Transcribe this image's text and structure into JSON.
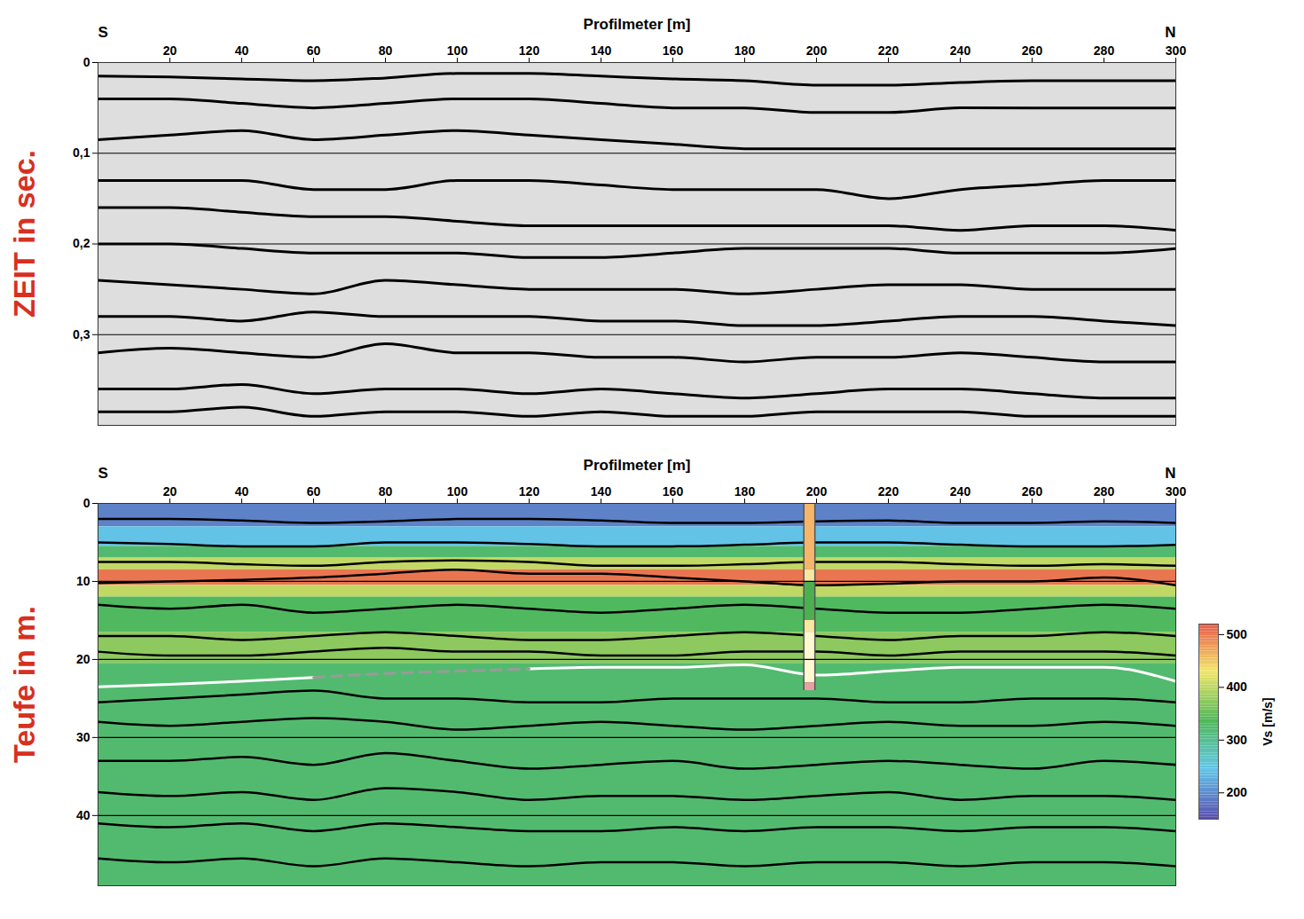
{
  "chart_data": [
    {
      "type": "line",
      "xlabel": "Profilmeter [m]",
      "ylabel": "ZEIT in sec.",
      "xlim": [
        0,
        300
      ],
      "ylim": [
        0,
        0.4
      ],
      "xticks": [
        20,
        40,
        60,
        80,
        100,
        120,
        140,
        160,
        180,
        200,
        220,
        240,
        260,
        280,
        300
      ],
      "yticks": [
        0,
        {
          "value": 0.1,
          "label": "0,1"
        },
        {
          "value": 0.2,
          "label": "0,2"
        },
        {
          "value": 0.3,
          "label": "0,3"
        }
      ],
      "grid": true,
      "annotations": [
        {
          "text": "S",
          "x": 0
        },
        {
          "text": "N",
          "x": 300
        }
      ],
      "x": [
        0,
        20,
        40,
        60,
        80,
        100,
        120,
        140,
        160,
        180,
        200,
        220,
        240,
        260,
        280,
        300
      ],
      "series": [
        {
          "color": "#000000",
          "values": [
            0.015,
            0.016,
            0.018,
            0.02,
            0.017,
            0.012,
            0.012,
            0.015,
            0.018,
            0.02,
            0.025,
            0.025,
            0.022,
            0.02,
            0.02,
            0.02
          ]
        },
        {
          "color": "#000000",
          "values": [
            0.04,
            0.04,
            0.045,
            0.05,
            0.045,
            0.04,
            0.04,
            0.045,
            0.05,
            0.05,
            0.055,
            0.055,
            0.05,
            0.05,
            0.05,
            0.05
          ]
        },
        {
          "color": "#000000",
          "values": [
            0.085,
            0.08,
            0.075,
            0.085,
            0.08,
            0.075,
            0.08,
            0.085,
            0.09,
            0.095,
            0.095,
            0.095,
            0.095,
            0.095,
            0.095,
            0.095
          ]
        },
        {
          "color": "#000000",
          "values": [
            0.13,
            0.13,
            0.13,
            0.14,
            0.14,
            0.13,
            0.13,
            0.135,
            0.14,
            0.14,
            0.14,
            0.15,
            0.14,
            0.135,
            0.13,
            0.13
          ]
        },
        {
          "color": "#000000",
          "values": [
            0.16,
            0.16,
            0.165,
            0.17,
            0.17,
            0.175,
            0.18,
            0.18,
            0.18,
            0.18,
            0.18,
            0.18,
            0.185,
            0.18,
            0.18,
            0.185
          ]
        },
        {
          "color": "#000000",
          "values": [
            0.2,
            0.2,
            0.205,
            0.21,
            0.21,
            0.21,
            0.215,
            0.215,
            0.21,
            0.205,
            0.205,
            0.205,
            0.21,
            0.21,
            0.21,
            0.205
          ]
        },
        {
          "color": "#000000",
          "values": [
            0.24,
            0.245,
            0.25,
            0.255,
            0.24,
            0.245,
            0.25,
            0.25,
            0.25,
            0.255,
            0.25,
            0.245,
            0.245,
            0.25,
            0.25,
            0.25
          ]
        },
        {
          "color": "#000000",
          "values": [
            0.28,
            0.28,
            0.285,
            0.275,
            0.28,
            0.28,
            0.28,
            0.285,
            0.285,
            0.29,
            0.29,
            0.285,
            0.28,
            0.28,
            0.285,
            0.29
          ]
        },
        {
          "color": "#000000",
          "values": [
            0.32,
            0.315,
            0.32,
            0.325,
            0.31,
            0.32,
            0.32,
            0.325,
            0.325,
            0.33,
            0.325,
            0.325,
            0.32,
            0.325,
            0.33,
            0.33
          ]
        },
        {
          "color": "#000000",
          "values": [
            0.36,
            0.36,
            0.355,
            0.365,
            0.36,
            0.36,
            0.365,
            0.36,
            0.365,
            0.37,
            0.365,
            0.36,
            0.36,
            0.365,
            0.37,
            0.37
          ]
        },
        {
          "color": "#000000",
          "values": [
            0.385,
            0.385,
            0.38,
            0.39,
            0.385,
            0.385,
            0.39,
            0.385,
            0.39,
            0.39,
            0.385,
            0.385,
            0.385,
            0.39,
            0.39,
            0.39
          ]
        }
      ]
    },
    {
      "type": "line",
      "xlabel": "Profilmeter [m]",
      "ylabel": "Teufe in m.",
      "xlim": [
        0,
        300
      ],
      "ylim": [
        0,
        49
      ],
      "xticks": [
        20,
        40,
        60,
        80,
        100,
        120,
        140,
        160,
        180,
        200,
        220,
        240,
        260,
        280,
        300
      ],
      "yticks": [
        0,
        10,
        20,
        30,
        40
      ],
      "grid": true,
      "annotations": [
        {
          "text": "S",
          "x": 0
        },
        {
          "text": "N",
          "x": 300
        }
      ],
      "x": [
        0,
        20,
        40,
        60,
        80,
        100,
        120,
        140,
        160,
        180,
        200,
        220,
        240,
        260,
        280,
        300
      ],
      "vs_layers": [
        {
          "top": 0,
          "bottom": 3,
          "vs": 190
        },
        {
          "top": 3,
          "bottom": 5.5,
          "vs": 240
        },
        {
          "top": 5.5,
          "bottom": 7,
          "vs": 320
        },
        {
          "top": 7,
          "bottom": 8.5,
          "vs": 400
        },
        {
          "top": 8.5,
          "bottom": 10.5,
          "vs": 500
        },
        {
          "top": 10.5,
          "bottom": 12,
          "vs": 400
        },
        {
          "top": 12,
          "bottom": 16.5,
          "vs": 330
        },
        {
          "top": 16.5,
          "bottom": 20.5,
          "vs": 370
        },
        {
          "top": 20.5,
          "bottom": 49,
          "vs": 320
        }
      ],
      "colorbar": {
        "label": "Vs [m/s]",
        "range": [
          150,
          520
        ],
        "ticks": [
          200,
          300,
          400,
          500
        ],
        "colors": [
          "#5a4fb0",
          "#62c6e8",
          "#4fb858",
          "#f2e66a",
          "#e8574a"
        ]
      },
      "borehole": {
        "x": 198,
        "segments": [
          {
            "top": 0,
            "bottom": 8.5,
            "color": "#f5b66b"
          },
          {
            "top": 8.5,
            "bottom": 10,
            "color": "#f7e7a0"
          },
          {
            "top": 10,
            "bottom": 15,
            "color": "#4caf50"
          },
          {
            "top": 15,
            "bottom": 16.5,
            "color": "#f7e7a0"
          },
          {
            "top": 16.5,
            "bottom": 23,
            "color": "#fff8d0"
          },
          {
            "top": 23,
            "bottom": 24,
            "color": "#e8a0a0"
          }
        ]
      },
      "series": [
        {
          "color": "#000000",
          "values": [
            2,
            2,
            2.2,
            2.5,
            2.3,
            2,
            2,
            2.2,
            2.5,
            2.5,
            2.3,
            2.2,
            2.5,
            2.5,
            2.3,
            2.5
          ]
        },
        {
          "color": "#000000",
          "values": [
            5,
            5.2,
            5.5,
            5.5,
            5,
            5,
            5.2,
            5.5,
            5.5,
            5.3,
            5,
            5,
            5.3,
            5.5,
            5.5,
            5.3
          ]
        },
        {
          "color": "#000000",
          "values": [
            7.5,
            7.5,
            7.8,
            8,
            7.5,
            7.3,
            7.5,
            8,
            8,
            7.8,
            7.5,
            7.5,
            7.8,
            8,
            7.8,
            8
          ]
        },
        {
          "color": "#000000",
          "values": [
            10.2,
            10,
            9.8,
            9.5,
            9,
            8.5,
            9,
            9,
            9.5,
            10,
            10.5,
            10.3,
            10,
            10,
            9.5,
            10.5
          ]
        },
        {
          "color": "#000000",
          "values": [
            13,
            13.5,
            13,
            14,
            13.5,
            13,
            13.5,
            14,
            13.5,
            13,
            13.5,
            14,
            14,
            13.5,
            13,
            13.5
          ]
        },
        {
          "color": "#000000",
          "values": [
            17,
            17,
            17.5,
            17,
            16.5,
            17,
            17.5,
            17.5,
            17,
            16.5,
            17,
            17.5,
            17,
            17,
            16.5,
            17
          ]
        },
        {
          "color": "#000000",
          "values": [
            19,
            19.5,
            19.5,
            19,
            18.5,
            19,
            19,
            19.5,
            19.5,
            19,
            19,
            19.5,
            19,
            19,
            19,
            19.5
          ]
        },
        {
          "color": "#000000",
          "values": [
            25.5,
            25,
            24.5,
            24,
            25,
            25,
            25.5,
            25.5,
            25,
            25,
            25,
            25.5,
            25.5,
            25,
            25,
            25.5
          ]
        },
        {
          "color": "#000000",
          "values": [
            28,
            28.5,
            28,
            27.5,
            28,
            29,
            28.5,
            28,
            28.5,
            29,
            28.5,
            28,
            28.5,
            28.5,
            28,
            28.5
          ]
        },
        {
          "color": "#000000",
          "values": [
            33,
            33,
            32.5,
            33.5,
            32,
            33,
            34,
            33.5,
            33,
            34,
            33.5,
            33,
            33.5,
            34,
            33,
            33.5
          ]
        },
        {
          "color": "#000000",
          "values": [
            37,
            37.5,
            37,
            38,
            36.5,
            37,
            38,
            37.5,
            37.5,
            38,
            37.5,
            37,
            38,
            37.5,
            37.5,
            38
          ]
        },
        {
          "color": "#000000",
          "values": [
            41,
            41.5,
            41,
            42,
            41,
            41.5,
            42,
            42,
            41.5,
            42,
            41.5,
            41.5,
            42,
            41.5,
            41.5,
            42
          ]
        },
        {
          "color": "#000000",
          "values": [
            45.5,
            46,
            45.5,
            46.5,
            45.5,
            46,
            46.5,
            46,
            46,
            46.5,
            46,
            46,
            46.5,
            46,
            46,
            46.5
          ]
        },
        {
          "color": "#ffffff",
          "line_style": "solid",
          "values": [
            23.5,
            23.2,
            22.8,
            22.3,
            null,
            null,
            21.2,
            21,
            21,
            20.7,
            22,
            21.5,
            21,
            21,
            21,
            22.8
          ]
        },
        {
          "color": "#9a9a9a",
          "line_style": "dashed",
          "values": [
            null,
            null,
            null,
            22.3,
            21.8,
            21.5,
            21.2,
            null,
            null,
            null,
            null,
            null,
            null,
            null,
            null,
            null
          ]
        }
      ]
    }
  ]
}
